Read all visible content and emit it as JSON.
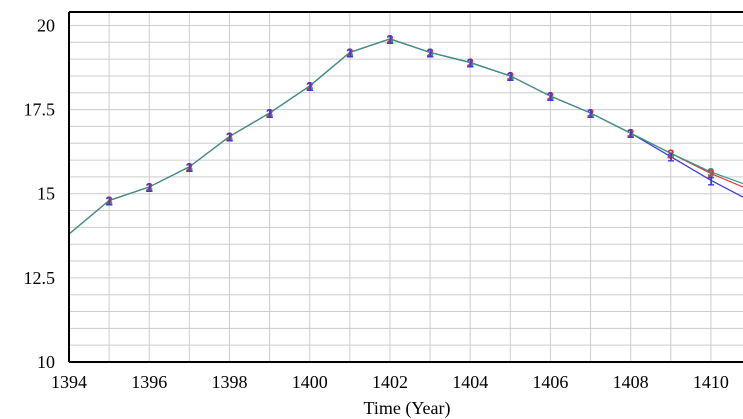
{
  "chart_data": {
    "type": "line",
    "title": "",
    "xlabel": "Time (Year)",
    "ylabel": "",
    "xlim": [
      1394,
      1410.8
    ],
    "ylim": [
      10,
      20.4
    ],
    "grid": true,
    "legend": "none",
    "x_ticks": [
      1394,
      1396,
      1398,
      1400,
      1402,
      1404,
      1406,
      1408,
      1410
    ],
    "x_tick_labels": [
      "1394",
      "1396",
      "1398",
      "1400",
      "1402",
      "1404",
      "1406",
      "1408",
      "1410"
    ],
    "y_ticks": [
      10,
      12.5,
      15,
      17.5,
      20
    ],
    "y_tick_labels": [
      "10",
      "12.5",
      "15",
      "17.5",
      "20"
    ],
    "series": [
      {
        "marker": "1",
        "color": "#3a3ad8",
        "x": [
          1394,
          1395,
          1396,
          1397,
          1398,
          1399,
          1400,
          1401,
          1402,
          1403,
          1404,
          1405,
          1406,
          1407,
          1408,
          1409,
          1410,
          1410.8
        ],
        "values": [
          13.8,
          14.8,
          15.2,
          15.8,
          16.7,
          17.4,
          18.2,
          19.2,
          19.6,
          19.2,
          18.9,
          18.5,
          17.9,
          17.4,
          16.8,
          16.1,
          15.4,
          14.9
        ]
      },
      {
        "marker": "2",
        "color": "#e03030",
        "x": [
          1394,
          1395,
          1396,
          1397,
          1398,
          1399,
          1400,
          1401,
          1402,
          1403,
          1404,
          1405,
          1406,
          1407,
          1408,
          1409,
          1410,
          1410.8
        ],
        "values": [
          13.8,
          14.8,
          15.2,
          15.8,
          16.7,
          17.4,
          18.2,
          19.2,
          19.6,
          19.2,
          18.9,
          18.5,
          17.9,
          17.4,
          16.8,
          16.2,
          15.6,
          15.2
        ]
      },
      {
        "marker": "3",
        "color": "#2a9a8a",
        "x": [
          1394,
          1395,
          1396,
          1397,
          1398,
          1399,
          1400,
          1401,
          1402,
          1403,
          1404,
          1405,
          1406,
          1407,
          1408,
          1409,
          1410,
          1410.8
        ],
        "values": [
          13.8,
          14.8,
          15.2,
          15.8,
          16.7,
          17.4,
          18.2,
          19.2,
          19.6,
          19.2,
          18.9,
          18.5,
          17.9,
          17.4,
          16.8,
          16.2,
          15.65,
          15.3
        ]
      }
    ]
  }
}
